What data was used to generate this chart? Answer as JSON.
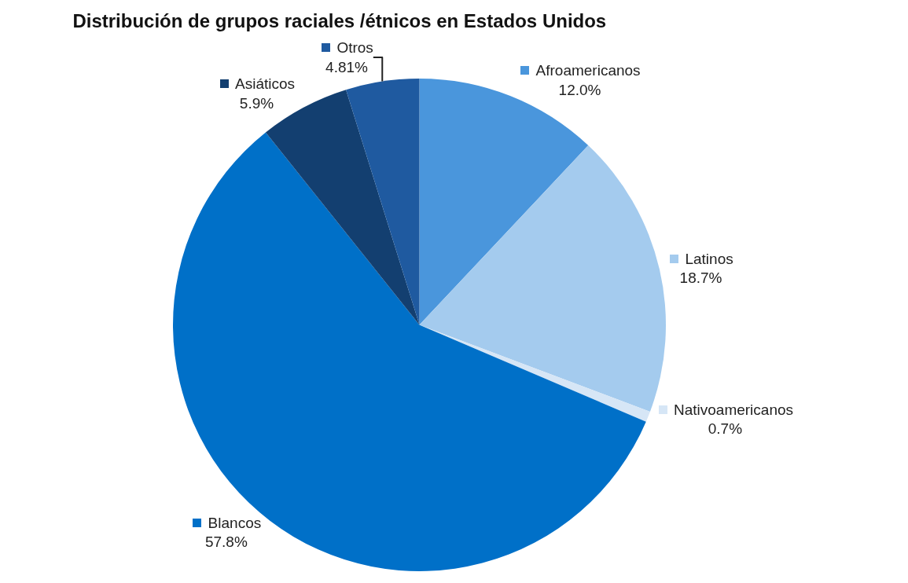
{
  "chart_data": {
    "type": "pie",
    "title": "Distribución de grupos raciales /étnicos en Estados Unidos",
    "categories": [
      "Afroamericanos",
      "Latinos",
      "Nativoamericanos",
      "Blancos",
      "Asiáticos",
      "Otros"
    ],
    "values": [
      12.0,
      18.7,
      0.7,
      57.8,
      5.9,
      4.81
    ],
    "colors": [
      "#4a96dc",
      "#a4cbee",
      "#d6e6f6",
      "#0070c8",
      "#133f70",
      "#1f5aa0"
    ],
    "value_labels": [
      "12.0%",
      "18.7%",
      "0.7%",
      "57.8%",
      "5.9%",
      "4.81%"
    ],
    "legend": "right"
  }
}
